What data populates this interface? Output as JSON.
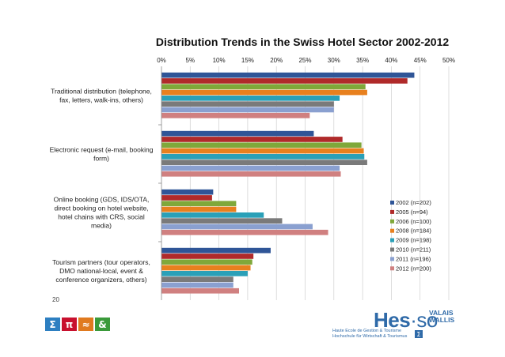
{
  "page": {
    "page_number": "20",
    "icons": [
      {
        "name": "sigma-icon",
        "glyph": "Σ",
        "color": "#2d7fc1"
      },
      {
        "name": "pi-icon",
        "glyph": "π",
        "color": "#c8102e"
      },
      {
        "name": "approx-icon",
        "glyph": "≈",
        "color": "#e07a1f"
      },
      {
        "name": "ampersand-icon",
        "glyph": "&",
        "color": "#3a9a3a"
      }
    ],
    "logo": {
      "main": "Hes",
      "separator": "·",
      "suffix": "so",
      "region_line1": "VALAIS",
      "region_line2": "WALLIS",
      "sub_line1": "Haute Ecole de Gestion & Tourisme",
      "sub_line2": "Hochschule für Wirtschaft & Tourismus",
      "sub_mark": "Σ"
    }
  },
  "chart_data": {
    "type": "bar",
    "orientation": "horizontal",
    "title": "Distribution Trends in the Swiss Hotel Sector 2002-2012",
    "xlabel": "",
    "ylabel": "",
    "xlim": [
      0,
      50
    ],
    "x_ticks": [
      "0%",
      "5%",
      "10%",
      "15%",
      "20%",
      "25%",
      "30%",
      "35%",
      "40%",
      "45%",
      "50%"
    ],
    "tick_values": [
      0,
      5,
      10,
      15,
      20,
      25,
      30,
      35,
      40,
      45,
      50
    ],
    "grid": true,
    "legend_position": "right",
    "categories": [
      [
        "Traditional distribution (telephone,",
        "fax, letters, walk-ins, others)"
      ],
      [
        "Electronic request (e-mail, booking",
        "form)"
      ],
      [
        "Online booking (GDS, IDS/OTA,",
        "direct booking on hotel website,",
        "hotel chains with CRS, social",
        "media)"
      ],
      [
        "Tourism partners (tour operators,",
        "DMO national-local, event &",
        "conference organizers, others)"
      ]
    ],
    "series": [
      {
        "name": "2002 (n=202)",
        "color": "#2f5597",
        "values": [
          44,
          26.5,
          9,
          19
        ]
      },
      {
        "name": "2005 (n=94)",
        "color": "#b02a2a",
        "values": [
          42.8,
          31.5,
          8.8,
          16
        ]
      },
      {
        "name": "2006 (n=100)",
        "color": "#7fa83a",
        "values": [
          35.5,
          34.8,
          13,
          15.8
        ]
      },
      {
        "name": "2008 (n=184)",
        "color": "#e8801e",
        "values": [
          35.8,
          35.2,
          13,
          15.5
        ]
      },
      {
        "name": "2009 (n=198)",
        "color": "#2aa0b8",
        "values": [
          31,
          35.3,
          17.8,
          15
        ]
      },
      {
        "name": "2010 (n=211)",
        "color": "#7a7a7a",
        "values": [
          30,
          35.8,
          21,
          12.5
        ]
      },
      {
        "name": "2011 (n=196)",
        "color": "#8aa0d0",
        "values": [
          30,
          31,
          26.3,
          12.5
        ]
      },
      {
        "name": "2012 (n=200)",
        "color": "#d08080",
        "values": [
          25.8,
          31.2,
          29,
          13.5
        ]
      }
    ]
  }
}
